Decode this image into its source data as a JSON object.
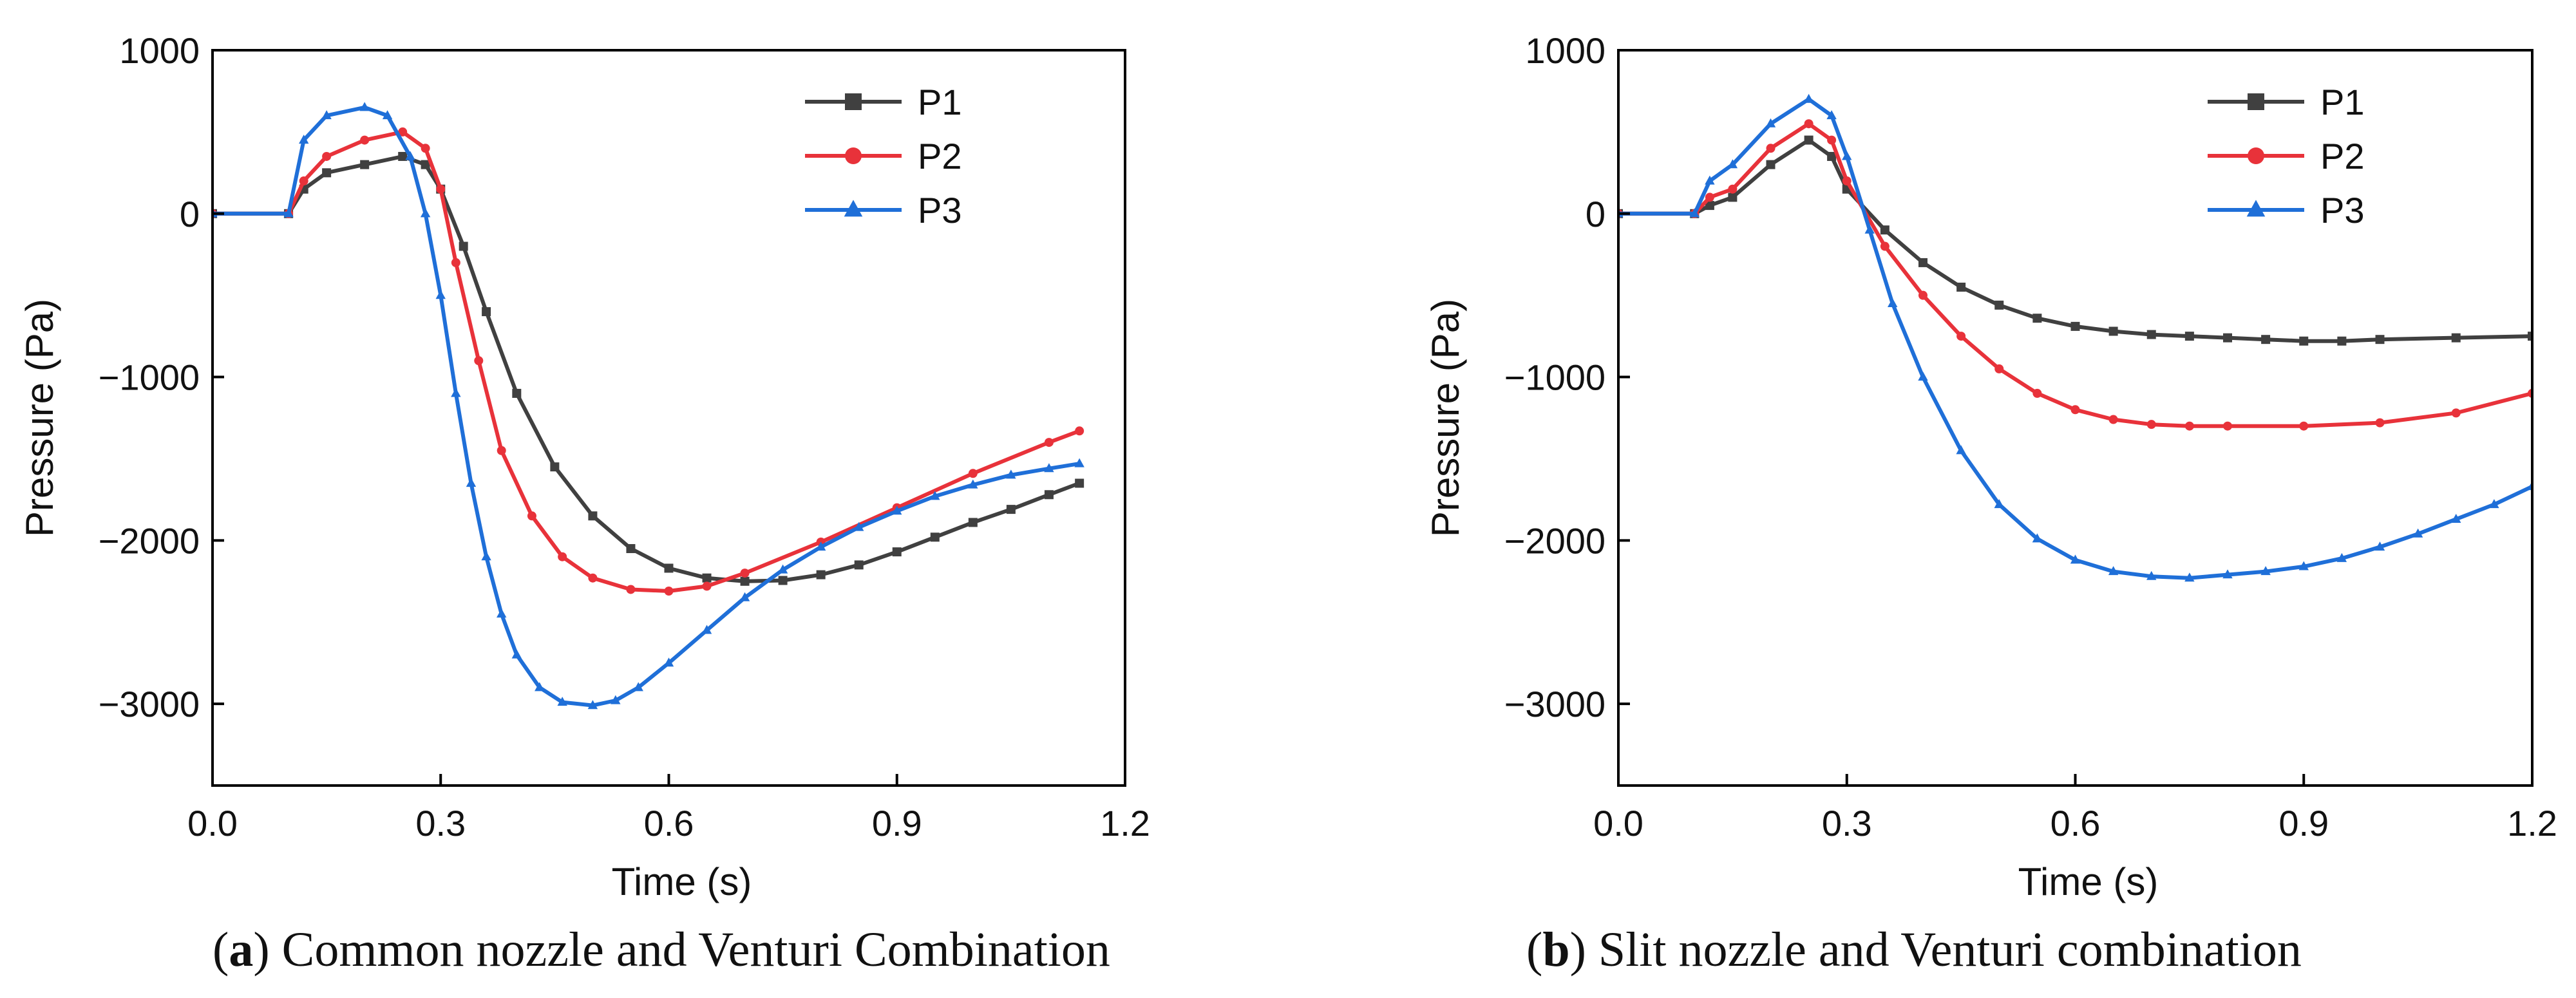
{
  "captions": [
    {
      "letter": "a",
      "text": "Common nozzle and Venturi Combination"
    },
    {
      "letter": "b",
      "text": "Slit nozzle and Venturi combination"
    }
  ],
  "chart_data": [
    {
      "type": "line",
      "xlabel": "Time (s)",
      "ylabel": "Pressure (Pa)",
      "xlim": [
        0.0,
        1.2
      ],
      "ylim": [
        -3500,
        1000
      ],
      "xticks": [
        "0.0",
        "0.3",
        "0.6",
        "0.9",
        "1.2"
      ],
      "xtick_values": [
        0.0,
        0.3,
        0.6,
        0.9,
        1.2
      ],
      "yticks": [
        "1000",
        "0",
        "−1000",
        "−2000",
        "−3000"
      ],
      "ytick_values": [
        1000,
        0,
        -1000,
        -2000,
        -3000
      ],
      "legend_position": "top-right",
      "series": [
        {
          "name": "P1",
          "color": "#404040",
          "marker": "square",
          "x": [
            0,
            0.1,
            0.12,
            0.15,
            0.2,
            0.25,
            0.28,
            0.3,
            0.33,
            0.36,
            0.4,
            0.45,
            0.5,
            0.55,
            0.6,
            0.65,
            0.7,
            0.75,
            0.8,
            0.85,
            0.9,
            0.95,
            1.0,
            1.05,
            1.1,
            1.14
          ],
          "y": [
            0,
            0,
            150,
            250,
            300,
            350,
            300,
            150,
            -200,
            -600,
            -1100,
            -1550,
            -1850,
            -2050,
            -2170,
            -2230,
            -2250,
            -2245,
            -2210,
            -2150,
            -2070,
            -1980,
            -1890,
            -1810,
            -1720,
            -1650
          ]
        },
        {
          "name": "P2",
          "color": "#e8323a",
          "marker": "circle",
          "x": [
            0,
            0.1,
            0.12,
            0.15,
            0.2,
            0.25,
            0.28,
            0.3,
            0.32,
            0.35,
            0.38,
            0.42,
            0.46,
            0.5,
            0.55,
            0.6,
            0.65,
            0.7,
            0.8,
            0.9,
            1.0,
            1.1,
            1.14
          ],
          "y": [
            0,
            0,
            200,
            350,
            450,
            500,
            400,
            150,
            -300,
            -900,
            -1450,
            -1850,
            -2100,
            -2230,
            -2300,
            -2310,
            -2280,
            -2200,
            -2010,
            -1800,
            -1590,
            -1400,
            -1330
          ]
        },
        {
          "name": "P3",
          "color": "#1f6fd8",
          "marker": "triangle",
          "x": [
            0,
            0.1,
            0.12,
            0.15,
            0.2,
            0.23,
            0.26,
            0.28,
            0.3,
            0.32,
            0.34,
            0.36,
            0.38,
            0.4,
            0.43,
            0.46,
            0.5,
            0.53,
            0.56,
            0.6,
            0.65,
            0.7,
            0.75,
            0.8,
            0.85,
            0.9,
            0.95,
            1.0,
            1.05,
            1.1,
            1.14
          ],
          "y": [
            0,
            0,
            450,
            600,
            650,
            600,
            350,
            0,
            -500,
            -1100,
            -1650,
            -2100,
            -2450,
            -2700,
            -2900,
            -2990,
            -3010,
            -2980,
            -2900,
            -2750,
            -2550,
            -2350,
            -2180,
            -2040,
            -1920,
            -1820,
            -1730,
            -1660,
            -1600,
            -1560,
            -1530
          ]
        }
      ]
    },
    {
      "type": "line",
      "xlabel": "Time (s)",
      "ylabel": "Pressure (Pa)",
      "xlim": [
        0.0,
        1.2
      ],
      "ylim": [
        -3500,
        1000
      ],
      "xticks": [
        "0.0",
        "0.3",
        "0.6",
        "0.9",
        "1.2"
      ],
      "xtick_values": [
        0.0,
        0.3,
        0.6,
        0.9,
        1.2
      ],
      "yticks": [
        "1000",
        "0",
        "−1000",
        "−2000",
        "−3000"
      ],
      "ytick_values": [
        1000,
        0,
        -1000,
        -2000,
        -3000
      ],
      "legend_position": "top-right",
      "series": [
        {
          "name": "P1",
          "color": "#404040",
          "marker": "square",
          "x": [
            0,
            0.1,
            0.12,
            0.15,
            0.2,
            0.25,
            0.28,
            0.3,
            0.35,
            0.4,
            0.45,
            0.5,
            0.55,
            0.6,
            0.65,
            0.7,
            0.75,
            0.8,
            0.85,
            0.9,
            0.95,
            1.0,
            1.1,
            1.2
          ],
          "y": [
            0,
            0,
            50,
            100,
            300,
            450,
            350,
            150,
            -100,
            -300,
            -450,
            -560,
            -640,
            -690,
            -720,
            -740,
            -750,
            -760,
            -770,
            -780,
            -780,
            -770,
            -760,
            -750
          ]
        },
        {
          "name": "P2",
          "color": "#e8323a",
          "marker": "circle",
          "x": [
            0,
            0.1,
            0.12,
            0.15,
            0.2,
            0.25,
            0.28,
            0.3,
            0.35,
            0.4,
            0.45,
            0.5,
            0.55,
            0.6,
            0.65,
            0.7,
            0.75,
            0.8,
            0.9,
            1.0,
            1.1,
            1.2
          ],
          "y": [
            0,
            0,
            100,
            150,
            400,
            550,
            450,
            200,
            -200,
            -500,
            -750,
            -950,
            -1100,
            -1200,
            -1260,
            -1290,
            -1300,
            -1300,
            -1300,
            -1280,
            -1220,
            -1100
          ]
        },
        {
          "name": "P3",
          "color": "#1f6fd8",
          "marker": "triangle",
          "x": [
            0,
            0.1,
            0.12,
            0.15,
            0.2,
            0.25,
            0.28,
            0.3,
            0.33,
            0.36,
            0.4,
            0.45,
            0.5,
            0.55,
            0.6,
            0.65,
            0.7,
            0.75,
            0.8,
            0.85,
            0.9,
            0.95,
            1.0,
            1.05,
            1.1,
            1.15,
            1.2
          ],
          "y": [
            0,
            0,
            200,
            300,
            550,
            700,
            600,
            350,
            -100,
            -550,
            -1000,
            -1450,
            -1780,
            -1990,
            -2120,
            -2190,
            -2220,
            -2230,
            -2210,
            -2190,
            -2160,
            -2110,
            -2040,
            -1960,
            -1870,
            -1780,
            -1670
          ]
        }
      ]
    }
  ]
}
